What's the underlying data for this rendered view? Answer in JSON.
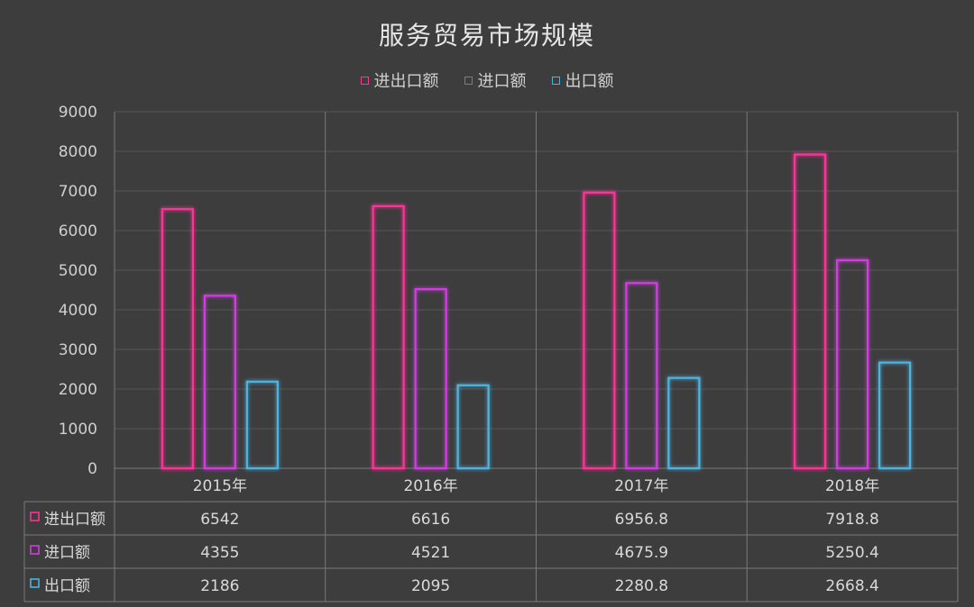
{
  "chart_data": {
    "type": "bar",
    "title": "服务贸易市场规模",
    "categories": [
      "2015年",
      "2016年",
      "2017年",
      "2018年"
    ],
    "series": [
      {
        "name": "进出口额",
        "values": [
          6542,
          6616,
          6956.8,
          7918.8
        ],
        "color": "#ff3399",
        "labels": [
          "6542",
          "6616",
          "6956.8",
          "7918.8"
        ]
      },
      {
        "name": "进口额",
        "values": [
          4355,
          4521,
          4675.9,
          5250.4
        ],
        "color": "#d13ee0",
        "labels": [
          "4355",
          "4521",
          "4675.9",
          "5250.4"
        ]
      },
      {
        "name": "出口额",
        "values": [
          2186,
          2095,
          2280.8,
          2668.4
        ],
        "color": "#4fb3e0",
        "labels": [
          "2186",
          "2095",
          "2280.8",
          "2668.4"
        ]
      }
    ],
    "ylim": [
      0,
      9000
    ],
    "yticks": [
      "0",
      "1000",
      "2000",
      "3000",
      "4000",
      "5000",
      "6000",
      "7000",
      "8000",
      "9000"
    ],
    "grid": true,
    "legend": "top",
    "data_table": true
  }
}
